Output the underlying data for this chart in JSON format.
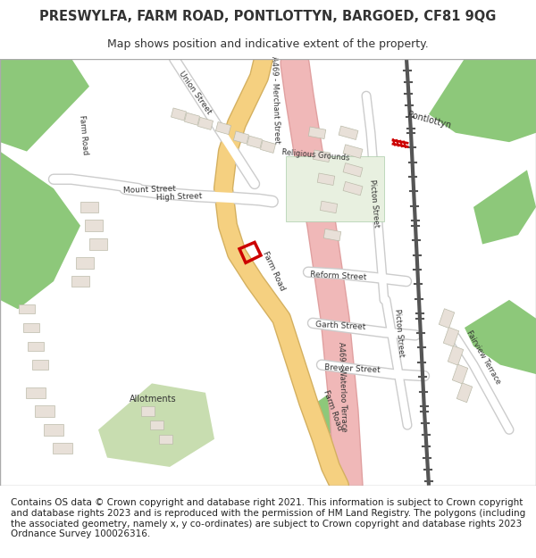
{
  "title": "PRESWYLFA, FARM ROAD, PONTLOTTYN, BARGOED, CF81 9QG",
  "subtitle": "Map shows position and indicative extent of the property.",
  "footer": "Contains OS data © Crown copyright and database right 2021. This information is subject to Crown copyright and database rights 2023 and is reproduced with the permission of HM Land Registry. The polygons (including the associated geometry, namely x, y co-ordinates) are subject to Crown copyright and database rights 2023 Ordnance Survey 100026316.",
  "bg_color": "#f5f5f0",
  "map_bg": "#ffffff",
  "green_color": "#8dc87a",
  "green_light": "#c8ddb0",
  "road_yellow": "#f5d080",
  "road_pink": "#f0b8b8",
  "road_white": "#ffffff",
  "road_outline": "#cccccc",
  "building_color": "#e8e0d8",
  "building_outline": "#bbbbaa",
  "plot_color": "#cc0000",
  "text_color": "#333333",
  "title_fontsize": 10.5,
  "subtitle_fontsize": 9,
  "footer_fontsize": 7.5
}
